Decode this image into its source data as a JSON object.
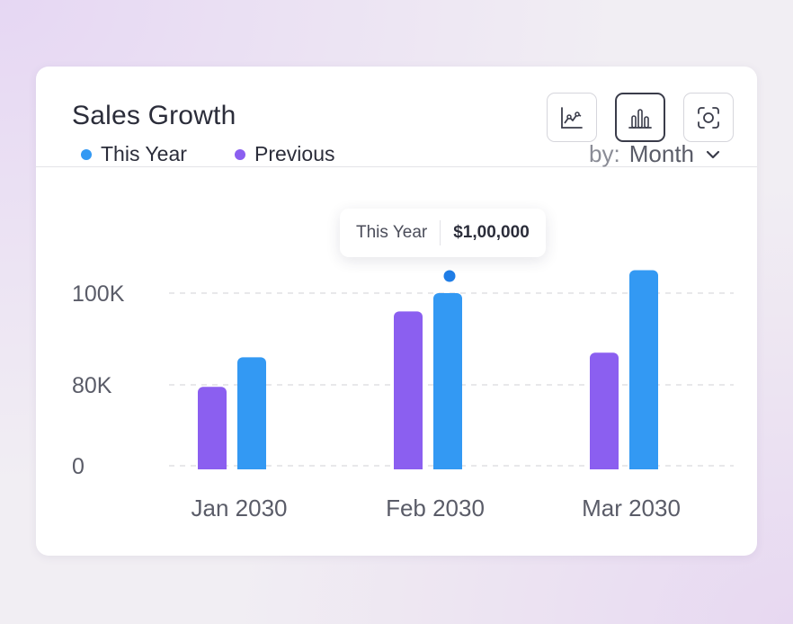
{
  "card": {
    "title": "Sales Growth"
  },
  "toolbar": {
    "buttons": [
      {
        "icon": "line-chart-icon",
        "active": false
      },
      {
        "icon": "bar-chart-icon",
        "active": true
      },
      {
        "icon": "screenshot-icon",
        "active": false
      }
    ]
  },
  "legend": {
    "items": [
      {
        "label": "This Year",
        "color": "#3399f3"
      },
      {
        "label": "Previous",
        "color": "#8b5ff0"
      }
    ]
  },
  "group_by": {
    "prefix": "by:",
    "value": "Month"
  },
  "tooltip": {
    "series": "This Year",
    "value": "$1,00,000"
  },
  "chart_data": {
    "type": "bar",
    "categories": [
      "Jan 2030",
      "Feb 2030",
      "Mar 2030"
    ],
    "series": [
      {
        "name": "Previous",
        "color": "#8b5ff0",
        "values": [
          78000,
          96000,
          87000
        ]
      },
      {
        "name": "This Year",
        "color": "#3399f3",
        "values": [
          86000,
          100000,
          105000
        ]
      }
    ],
    "y_ticks": [
      {
        "label": "100K",
        "value": 100000
      },
      {
        "label": "80K",
        "value": 80000
      },
      {
        "label": "0",
        "value": 0
      }
    ],
    "grid": true,
    "legend_position": "top-left"
  }
}
